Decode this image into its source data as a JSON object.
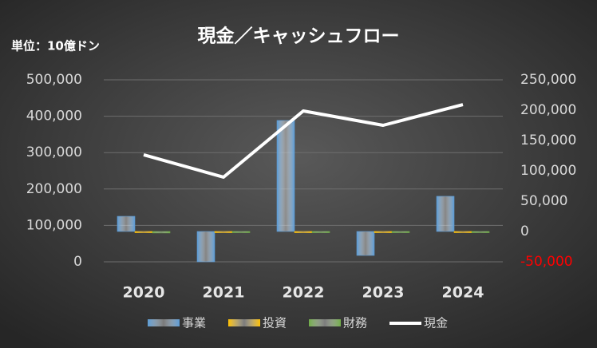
{
  "chart_data": {
    "type": "bar-line",
    "title": "現金／キャッシュフロー",
    "unit_label": "単位：10億ドン",
    "categories": [
      "2020",
      "2021",
      "2022",
      "2023",
      "2024"
    ],
    "series": [
      {
        "name": "事業",
        "type": "bar",
        "axis": "y2",
        "color": "#5b9bd5",
        "values": [
          25000,
          -50000,
          183000,
          -39500,
          58000
        ]
      },
      {
        "name": "投資",
        "type": "bar",
        "axis": "y2",
        "color": "#ffc000",
        "values": [
          -2000,
          -1500,
          -2000,
          -1500,
          -1500
        ]
      },
      {
        "name": "財務",
        "type": "bar",
        "axis": "y2",
        "color": "#70ad47",
        "values": [
          -2500,
          -1500,
          -2000,
          -1500,
          -1500
        ]
      },
      {
        "name": "現金",
        "type": "line",
        "axis": "y",
        "color": "#ffffff",
        "values": [
          294000,
          232500,
          414500,
          375000,
          432000
        ]
      }
    ],
    "ylim": [
      0,
      500000
    ],
    "yticks": [
      0,
      {
        "value": 100000,
        "label": "100,000"
      },
      {
        "value": 200000,
        "label": "200,000"
      },
      {
        "value": 300000,
        "label": "300,000"
      },
      {
        "value": 400000,
        "label": "400,000"
      },
      {
        "value": 500000,
        "label": "500,000"
      }
    ],
    "y2lim": [
      -50000,
      250000
    ],
    "y2ticks": [
      {
        "value": -50000,
        "label": "-50,000"
      },
      0,
      {
        "value": 50000,
        "label": "50,000"
      },
      {
        "value": 100000,
        "label": "100,000"
      },
      {
        "value": 150000,
        "label": "150,000"
      },
      {
        "value": 200000,
        "label": "200,000"
      },
      {
        "value": 250000,
        "label": "250,000"
      }
    ],
    "y2_negative_tick_color": "#ff0000",
    "grid": true
  }
}
